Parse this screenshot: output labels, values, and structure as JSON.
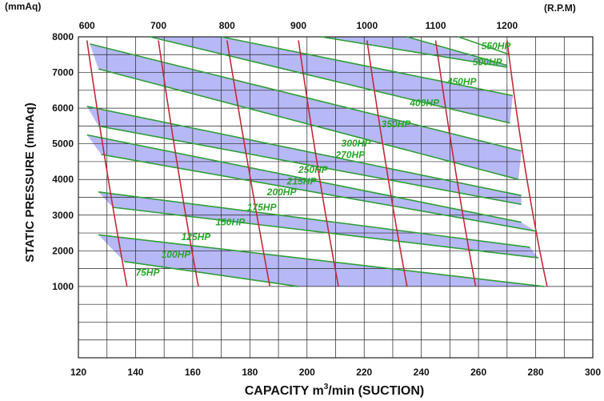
{
  "chart_data": {
    "type": "line",
    "title": "",
    "xlabel_main": "CAPACITY  m",
    "xlabel_sup": "3",
    "xlabel_tail": "/min (SUCTION)",
    "ylabel": "STATIC  PRESSURE  (mmAq)",
    "y_unit_label": "(mmAq)",
    "rpm_unit_label": "(R.P.M)",
    "xlim": [
      120,
      300
    ],
    "ylim": [
      -1000,
      8000
    ],
    "grid": true,
    "x_ticks": [
      120,
      140,
      160,
      180,
      200,
      220,
      240,
      260,
      280,
      300
    ],
    "y_ticks": [
      1000,
      2000,
      3000,
      4000,
      5000,
      6000,
      7000,
      8000
    ],
    "rpm_ticks": [
      {
        "label": "600",
        "x": 123
      },
      {
        "label": "700",
        "x": 148
      },
      {
        "label": "800",
        "x": 172
      },
      {
        "label": "900",
        "x": 197
      },
      {
        "label": "1000",
        "x": 221
      },
      {
        "label": "1100",
        "x": 245
      },
      {
        "label": "1200",
        "x": 270
      }
    ],
    "rpm_curves": [
      {
        "name": "600",
        "points": [
          [
            123,
            7900
          ],
          [
            130,
            4000
          ],
          [
            137,
            1000
          ]
        ]
      },
      {
        "name": "700",
        "points": [
          [
            148,
            7900
          ],
          [
            155,
            4000
          ],
          [
            162,
            1000
          ]
        ]
      },
      {
        "name": "800",
        "points": [
          [
            172,
            7900
          ],
          [
            180,
            4000
          ],
          [
            187,
            1000
          ]
        ]
      },
      {
        "name": "900",
        "points": [
          [
            197,
            7900
          ],
          [
            204,
            4000
          ],
          [
            211,
            1000
          ]
        ]
      },
      {
        "name": "1000",
        "points": [
          [
            221,
            7900
          ],
          [
            228,
            4000
          ],
          [
            235,
            1000
          ]
        ]
      },
      {
        "name": "1100",
        "points": [
          [
            245,
            7900
          ],
          [
            252,
            4000
          ],
          [
            259,
            1000
          ]
        ]
      },
      {
        "name": "1200",
        "points": [
          [
            270,
            7900
          ],
          [
            276,
            4000
          ],
          [
            284,
            1000
          ]
        ]
      }
    ],
    "hp_curves": [
      {
        "pair": [
          [
            136,
            1700
          ],
          [
            197,
            1000
          ]
        ]
      },
      {
        "pair": [
          [
            127,
            2450
          ],
          [
            283,
            1000
          ]
        ]
      },
      {
        "pair": [
          [
            132,
            3220
          ],
          [
            281,
            1800
          ]
        ]
      },
      {
        "pair": [
          [
            127,
            3650
          ],
          [
            278,
            2100
          ]
        ]
      },
      {
        "pair": [
          [
            128,
            4700
          ],
          [
            280,
            2550
          ]
        ]
      },
      {
        "pair": [
          [
            123,
            5250
          ],
          [
            275,
            2800
          ]
        ]
      },
      {
        "pair": [
          [
            127,
            5500
          ],
          [
            275,
            3300
          ]
        ]
      },
      {
        "pair": [
          [
            123,
            6050
          ],
          [
            275,
            3550
          ]
        ]
      },
      {
        "pair": [
          [
            127,
            7100
          ],
          [
            274,
            4000
          ]
        ]
      },
      {
        "pair": [
          [
            124,
            7800
          ],
          [
            275,
            4800
          ]
        ]
      },
      {
        "pair": [
          [
            145,
            8000
          ],
          [
            271,
            5580
          ]
        ]
      },
      {
        "pair": [
          [
            170,
            8000
          ],
          [
            272,
            6350
          ]
        ]
      },
      {
        "pair": [
          [
            205,
            8000
          ],
          [
            270,
            7150
          ]
        ]
      },
      {
        "pair": [
          [
            235,
            8000
          ],
          [
            270,
            7200
          ]
        ]
      },
      {
        "pair": [
          [
            253,
            8000
          ],
          [
            271,
            7500
          ]
        ]
      }
    ],
    "bands": [
      {
        "from": 0,
        "to": 1
      },
      {
        "from": 2,
        "to": 3
      },
      {
        "from": 4,
        "to": 5
      },
      {
        "from": 6,
        "to": 7
      },
      {
        "from": 8,
        "to": 9
      },
      {
        "from": 10,
        "to": 11
      },
      {
        "from": 12,
        "to": 13
      }
    ],
    "hp_labels": [
      {
        "text": "75HP",
        "x": 140,
        "y": 1300
      },
      {
        "text": "100HP",
        "x": 149,
        "y": 1800
      },
      {
        "text": "125HP",
        "x": 156,
        "y": 2300
      },
      {
        "text": "150HP",
        "x": 168,
        "y": 2720
      },
      {
        "text": "175HP",
        "x": 179,
        "y": 3130
      },
      {
        "text": "200HP",
        "x": 186,
        "y": 3560
      },
      {
        "text": "215HP",
        "x": 193,
        "y": 3860
      },
      {
        "text": "250HP",
        "x": 197,
        "y": 4180
      },
      {
        "text": "270HP",
        "x": 210,
        "y": 4600
      },
      {
        "text": "300HP",
        "x": 212,
        "y": 4920
      },
      {
        "text": "350HP",
        "x": 226,
        "y": 5460
      },
      {
        "text": "400HP",
        "x": 236,
        "y": 6060
      },
      {
        "text": "450HP",
        "x": 249,
        "y": 6650
      },
      {
        "text": "500HP",
        "x": 258,
        "y": 7200
      },
      {
        "text": "550HP",
        "x": 261,
        "y": 7650
      }
    ],
    "colors": {
      "band": "#8a8cf0",
      "hp_line": "#2e9e36",
      "rpm_line": "#c02a3a",
      "grid": "#222222",
      "hp_text": "#2aa52a"
    }
  }
}
